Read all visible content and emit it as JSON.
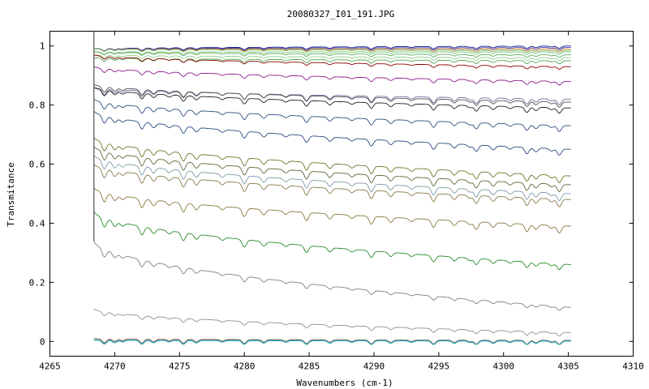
{
  "chart_data": {
    "type": "line",
    "title": "20080327_I01_191.JPG",
    "xlabel": "Wavenumbers (cm-1)",
    "ylabel": "Transmitance",
    "xlim": [
      4265,
      4310
    ],
    "ylim": [
      -0.05,
      1.05
    ],
    "x_ticks": [
      4265,
      4270,
      4275,
      4280,
      4285,
      4290,
      4295,
      4300,
      4305,
      4310
    ],
    "y_ticks": [
      0,
      0.2,
      0.4,
      0.6,
      0.8,
      1
    ],
    "y_tick_labels": [
      "0",
      "0.2",
      "0.4",
      "0.6",
      "0.8",
      "1"
    ],
    "grid": false,
    "legend": "none",
    "x_range": [
      4268.4,
      4305.2
    ],
    "absorption_lines_cm1": [
      4269.2,
      4270.0,
      4270.6,
      4272.1,
      4273.0,
      4274.2,
      4275.3,
      4276.3,
      4278.3,
      4280.0,
      4281.5,
      4283.2,
      4284.8,
      4286.6,
      4288.3,
      4289.8,
      4291.3,
      4292.9,
      4294.6,
      4296.2,
      4297.4,
      4297.9,
      4299.2,
      4300.5,
      4301.8,
      4302.5,
      4303.7,
      4304.3
    ],
    "series": [
      {
        "start": 0.99,
        "end": 1.0,
        "color": "#1c1c8c"
      },
      {
        "start": 0.99,
        "end": 0.995,
        "color": "#3a3aa0"
      },
      {
        "start": 0.99,
        "end": 0.99,
        "color": "#e08a2a"
      },
      {
        "start": 0.99,
        "end": 0.985,
        "color": "#6fb26f"
      },
      {
        "start": 0.98,
        "end": 0.98,
        "color": "#7cc37c"
      },
      {
        "start": 0.98,
        "end": 0.97,
        "color": "#5fae5f"
      },
      {
        "start": 0.97,
        "end": 0.96,
        "color": "#8fce8f"
      },
      {
        "start": 0.96,
        "end": 0.95,
        "color": "#52a852"
      },
      {
        "start": 0.97,
        "end": 0.93,
        "color": "#8b0000"
      },
      {
        "start": 0.93,
        "end": 0.88,
        "color": "#8b1a8b"
      },
      {
        "start": 0.86,
        "end": 0.82,
        "color": "#7a6a9a"
      },
      {
        "start": 0.87,
        "end": 0.81,
        "color": "#505050"
      },
      {
        "start": 0.86,
        "end": 0.79,
        "color": "#202020"
      },
      {
        "start": 0.82,
        "end": 0.73,
        "color": "#2f4f7f"
      },
      {
        "start": 0.78,
        "end": 0.65,
        "color": "#2b4a80"
      },
      {
        "start": 0.69,
        "end": 0.56,
        "color": "#6b7a2a"
      },
      {
        "start": 0.66,
        "end": 0.53,
        "color": "#5a6a3a"
      },
      {
        "start": 0.63,
        "end": 0.5,
        "color": "#7f9aa8"
      },
      {
        "start": 0.6,
        "end": 0.48,
        "color": "#8a7a4a"
      },
      {
        "start": 0.52,
        "end": 0.39,
        "color": "#8a7a40"
      },
      {
        "start": 0.44,
        "end": 0.26,
        "color": "#2a8a2a"
      },
      {
        "start": 0.34,
        "end": 0.115,
        "color": "#808080"
      },
      {
        "start": 0.11,
        "end": 0.03,
        "color": "#909090"
      },
      {
        "start": 0.01,
        "end": 0.004,
        "color": "#d08040"
      },
      {
        "start": 0.007,
        "end": 0.003,
        "color": "#3a8ad0"
      },
      {
        "start": 0.004,
        "end": 0.001,
        "color": "#20a0a0"
      }
    ]
  }
}
